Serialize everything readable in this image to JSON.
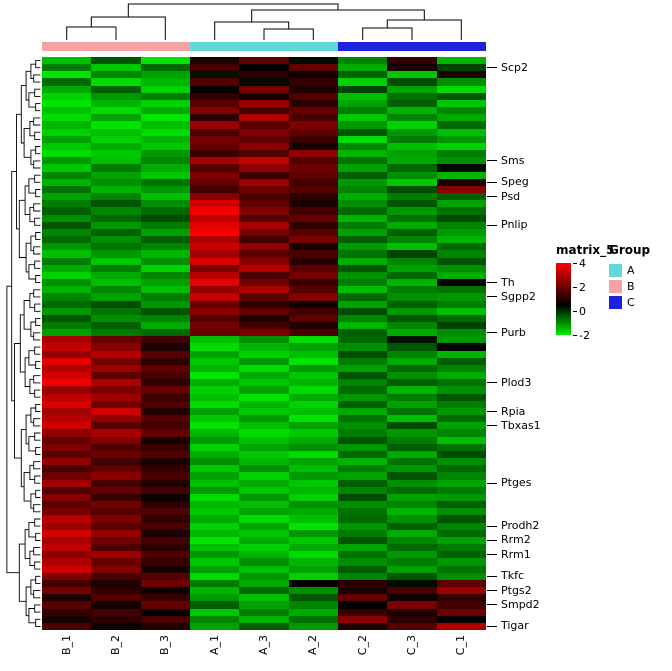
{
  "chart_data": {
    "type": "heatmap",
    "legend_title": "matrix_5",
    "colorbar_ticks": [
      4,
      2,
      0,
      -2
    ],
    "scale": {
      "min": -2,
      "mid": 0.5,
      "max": 4,
      "min_color": "#00EE00",
      "mid_color": "#000000",
      "max_color": "#FF0000"
    },
    "columns": [
      "B_1",
      "B_2",
      "B_3",
      "A_1",
      "A_3",
      "A_2",
      "C_2",
      "C_3",
      "C_1"
    ],
    "column_groups": [
      "B",
      "B",
      "B",
      "A",
      "A",
      "A",
      "C",
      "C",
      "C"
    ],
    "group_legend": {
      "title": "Group",
      "items": [
        {
          "label": "A",
          "color": "#63D8D8"
        },
        {
          "label": "B",
          "color": "#F5A2A2"
        },
        {
          "label": "C",
          "color": "#2020DF"
        }
      ]
    },
    "row_labels": [
      {
        "label": "Scp2",
        "row": 1
      },
      {
        "label": "Sms",
        "row": 14
      },
      {
        "label": "Speg",
        "row": 17
      },
      {
        "label": "Psd",
        "row": 19
      },
      {
        "label": "Pnlip",
        "row": 23
      },
      {
        "label": "Th",
        "row": 31
      },
      {
        "label": "Sgpp2",
        "row": 33
      },
      {
        "label": "Purb",
        "row": 38
      },
      {
        "label": "Plod3",
        "row": 45
      },
      {
        "label": "Rpia",
        "row": 49
      },
      {
        "label": "Tbxas1",
        "row": 51
      },
      {
        "label": "Ptges",
        "row": 59
      },
      {
        "label": "Prodh2",
        "row": 65
      },
      {
        "label": "Rrm2",
        "row": 67
      },
      {
        "label": "Rrm1",
        "row": 69
      },
      {
        "label": "Tkfc",
        "row": 72
      },
      {
        "label": "Ptgs2",
        "row": 74
      },
      {
        "label": "Smpd2",
        "row": 76
      },
      {
        "label": "Tigar",
        "row": 79
      }
    ],
    "n_rows": 80,
    "matrix": [
      [
        -1.5,
        -0.4,
        -1.9,
        0.9,
        1.8,
        0.4,
        -0.9,
        1.2,
        -1.4
      ],
      [
        -0.8,
        -1.6,
        -0.6,
        1.4,
        0.6,
        1.9,
        -1.3,
        0.8,
        -0.2
      ],
      [
        -1.9,
        -0.9,
        -1.2,
        0.3,
        1.1,
        0.7,
        -0.5,
        -1.6,
        0.9
      ],
      [
        -0.6,
        -1.8,
        -1.4,
        1.7,
        0.4,
        1.2,
        -1.7,
        -0.3,
        -1.0
      ],
      [
        -1.3,
        -0.5,
        -1.7,
        0.6,
        2.1,
        0.9,
        -0.2,
        -1.2,
        -1.8
      ],
      [
        -1.7,
        -1.1,
        -0.8,
        1.2,
        0.8,
        1.6,
        -1.5,
        -0.7,
        -0.4
      ],
      [
        -1.9,
        -1.4,
        -1.7,
        1.8,
        2.6,
        1.1,
        -1.2,
        -0.5,
        -1.6
      ],
      [
        -1.5,
        -1.8,
        -1.3,
        2.3,
        1.4,
        1.9,
        -0.8,
        -1.4,
        -0.9
      ],
      [
        -1.8,
        -1.2,
        -1.9,
        1.1,
        2.9,
        1.5,
        -1.6,
        -0.9,
        -1.3
      ],
      [
        -1.4,
        -1.9,
        -1.5,
        2.6,
        1.7,
        2.2,
        -1.1,
        -1.7,
        -0.6
      ],
      [
        -1.7,
        -1.5,
        -1.8,
        1.5,
        2.2,
        1.8,
        -0.4,
        -1.1,
        -1.5
      ],
      [
        -1.2,
        -1.7,
        -1.4,
        2.1,
        1.9,
        1.3,
        -1.8,
        -0.8,
        -1.1
      ],
      [
        -1.6,
        -1.3,
        -1.6,
        1.9,
        2.4,
        0.8,
        -0.9,
        -1.5,
        -1.7
      ],
      [
        -1.8,
        -1.6,
        -1.1,
        1.3,
        1.6,
        2.5,
        -1.4,
        -1.2,
        -0.8
      ],
      [
        -1.1,
        -1.5,
        -0.9,
        2.8,
        3.2,
        1.6,
        -0.7,
        -1.3,
        -1.0
      ],
      [
        -1.6,
        -0.8,
        -1.3,
        1.7,
        2.5,
        2.0,
        -1.2,
        -0.6,
        0.4
      ],
      [
        -0.9,
        -1.2,
        -1.6,
        2.2,
        1.3,
        1.8,
        -0.5,
        -1.0,
        -1.4
      ],
      [
        -1.4,
        -1.0,
        -0.7,
        1.9,
        2.7,
        1.4,
        -1.1,
        -1.6,
        0.8
      ],
      [
        -0.7,
        -1.4,
        -1.1,
        1.4,
        2.0,
        1.7,
        -0.9,
        -0.3,
        2.4
      ],
      [
        -1.2,
        -0.9,
        -1.5,
        2.4,
        1.5,
        1.1,
        -1.3,
        -0.8,
        -0.5
      ],
      [
        -0.8,
        -0.4,
        -1.0,
        3.4,
        1.9,
        0.9,
        -1.0,
        -0.4,
        -1.2
      ],
      [
        -0.5,
        -0.9,
        -0.6,
        3.8,
        2.3,
        1.4,
        -0.6,
        -1.1,
        -0.7
      ],
      [
        -1.0,
        -0.6,
        -0.3,
        3.1,
        1.6,
        1.9,
        -1.4,
        -0.7,
        -0.3
      ],
      [
        -0.4,
        -1.1,
        -0.8,
        3.6,
        2.8,
        1.2,
        -0.8,
        -1.3,
        -0.9
      ],
      [
        -0.9,
        -0.5,
        -1.2,
        3.9,
        2.1,
        1.7,
        -1.2,
        -0.5,
        -1.1
      ],
      [
        -0.6,
        -1.0,
        -0.5,
        2.9,
        1.4,
        2.2,
        -0.5,
        -0.9,
        -1.4
      ],
      [
        -1.1,
        -0.7,
        -0.9,
        3.3,
        2.5,
        0.8,
        -1.1,
        -1.5,
        -0.6
      ],
      [
        -1.5,
        -1.1,
        -1.4,
        2.7,
        1.8,
        1.5,
        -0.7,
        -0.2,
        -0.9
      ],
      [
        -0.8,
        -1.6,
        -1.0,
        3.5,
        2.4,
        1.1,
        -1.3,
        -0.9,
        -0.4
      ],
      [
        -1.3,
        -0.8,
        -1.7,
        2.2,
        3.0,
        1.8,
        -0.4,
        -1.2,
        -1.0
      ],
      [
        -1.7,
        -1.3,
        -0.9,
        3.0,
        1.5,
        2.1,
        -1.0,
        -0.6,
        -1.3
      ],
      [
        -1.0,
        -1.5,
        -1.2,
        3.7,
        2.0,
        1.3,
        -0.8,
        -1.4,
        0.6
      ],
      [
        -1.4,
        -0.9,
        -1.5,
        2.5,
        2.9,
        1.7,
        -1.5,
        -0.8,
        -0.7
      ],
      [
        -0.9,
        -1.2,
        -0.8,
        3.2,
        1.7,
        2.3,
        -0.6,
        -1.0,
        -1.1
      ],
      [
        -0.6,
        -0.3,
        -1.1,
        1.8,
        1.2,
        0.7,
        -1.2,
        -0.5,
        -0.8
      ],
      [
        -1.1,
        -0.7,
        -0.4,
        2.4,
        1.9,
        1.4,
        -0.3,
        -1.1,
        -1.5
      ],
      [
        -0.4,
        -1.0,
        -0.9,
        1.6,
        0.9,
        1.8,
        -0.9,
        -0.4,
        -0.6
      ],
      [
        -0.8,
        -0.5,
        -1.3,
        2.1,
        1.4,
        1.0,
        -1.4,
        -0.9,
        -0.2
      ],
      [
        -1.2,
        -0.8,
        -0.6,
        1.9,
        2.2,
        1.5,
        -0.5,
        -1.3,
        -1.0
      ],
      [
        2.8,
        1.9,
        1.4,
        -1.5,
        -1.0,
        -1.8,
        -0.6,
        0.3,
        -1.1
      ],
      [
        3.2,
        2.4,
        0.9,
        -1.8,
        -1.4,
        -1.2,
        -1.0,
        -0.4,
        0.5
      ],
      [
        2.5,
        3.0,
        1.7,
        -1.2,
        -1.7,
        -1.5,
        -0.3,
        -0.9,
        -1.4
      ],
      [
        3.6,
        2.1,
        1.2,
        -1.6,
        -1.1,
        -1.9,
        -0.8,
        -1.3,
        -0.5
      ],
      [
        2.9,
        2.6,
        1.8,
        -1.4,
        -1.8,
        -1.1,
        -1.2,
        -0.6,
        -0.9
      ],
      [
        3.4,
        1.8,
        1.5,
        -1.9,
        -1.3,
        -1.6,
        -0.4,
        -1.0,
        -1.3
      ],
      [
        3.8,
        2.9,
        1.1,
        -1.3,
        -1.6,
        -1.4,
        -0.9,
        -0.5,
        -0.7
      ],
      [
        2.6,
        2.2,
        1.9,
        -1.7,
        -1.2,
        -1.8,
        -0.6,
        -1.4,
        -1.0
      ],
      [
        3.1,
        2.7,
        1.3,
        -1.5,
        -1.9,
        -1.3,
        -1.1,
        -0.8,
        -0.4
      ],
      [
        3.5,
        2.0,
        1.6,
        -1.8,
        -1.4,
        -1.7,
        -0.5,
        -1.2,
        -0.8
      ],
      [
        2.7,
        3.3,
        1.0,
        -1.2,
        -1.6,
        -1.5,
        -1.3,
        -0.7,
        -1.1
      ],
      [
        3.0,
        2.5,
        1.7,
        -1.6,
        -1.1,
        -1.9,
        -0.7,
        -1.5,
        -0.6
      ],
      [
        3.3,
        1.7,
        1.4,
        -1.9,
        -1.5,
        -1.2,
        -1.0,
        -0.3,
        -1.2
      ],
      [
        2.4,
        2.8,
        1.9,
        -1.4,
        -1.8,
        -1.6,
        -0.8,
        -1.1,
        -0.9
      ],
      [
        1.9,
        2.3,
        0.8,
        -1.1,
        -1.5,
        -1.3,
        -0.4,
        -0.8,
        -1.5
      ],
      [
        2.2,
        1.6,
        1.3,
        -1.7,
        -1.2,
        -1.0,
        -1.1,
        -0.5,
        -0.7
      ],
      [
        1.7,
        2.0,
        1.6,
        -1.3,
        -1.6,
        -1.8,
        -0.6,
        -1.3,
        -0.3
      ],
      [
        2.5,
        1.4,
        0.9,
        -1.0,
        -1.4,
        -1.2,
        -1.4,
        -0.7,
        -1.0
      ],
      [
        1.5,
        1.8,
        1.2,
        -1.6,
        -1.0,
        -1.5,
        -0.8,
        -1.1,
        -0.6
      ],
      [
        2.0,
        2.4,
        1.5,
        -1.2,
        -1.7,
        -1.1,
        -1.2,
        -0.4,
        -0.9
      ],
      [
        2.7,
        1.5,
        1.0,
        -1.5,
        -1.3,
        -1.6,
        -0.5,
        -1.0,
        -1.2
      ],
      [
        1.6,
        1.9,
        1.4,
        -1.1,
        -1.6,
        -1.4,
        -0.9,
        -0.6,
        -0.8
      ],
      [
        2.3,
        1.3,
        0.7,
        -1.8,
        -1.1,
        -1.7,
        -0.3,
        -1.2,
        -1.1
      ],
      [
        1.8,
        2.1,
        1.1,
        -1.4,
        -1.5,
        -1.0,
        -1.0,
        -0.9,
        -0.5
      ],
      [
        2.1,
        1.7,
        1.6,
        -1.6,
        -1.2,
        -1.3,
        -0.7,
        -1.4,
        -1.0
      ],
      [
        3.0,
        2.2,
        1.2,
        -1.3,
        -1.8,
        -1.5,
        -0.6,
        -1.0,
        -0.4
      ],
      [
        2.6,
        1.8,
        1.5,
        -1.7,
        -1.2,
        -1.9,
        -1.1,
        -0.5,
        -0.9
      ],
      [
        3.4,
        2.5,
        0.9,
        -1.4,
        -1.6,
        -1.1,
        -0.8,
        -1.3,
        -0.6
      ],
      [
        2.8,
        2.0,
        1.4,
        -1.9,
        -1.3,
        -1.6,
        -0.4,
        -0.9,
        -1.2
      ],
      [
        3.1,
        1.6,
        1.1,
        -1.5,
        -1.7,
        -1.3,
        -1.2,
        -0.6,
        -0.8
      ],
      [
        2.4,
        2.7,
        1.6,
        -1.1,
        -1.4,
        -1.8,
        -0.7,
        -1.1,
        -0.5
      ],
      [
        2.9,
        1.9,
        1.3,
        -1.6,
        -1.0,
        -1.4,
        -1.0,
        -0.8,
        -1.1
      ],
      [
        3.3,
        2.3,
        0.8,
        -1.2,
        -1.5,
        -1.2,
        -0.5,
        -1.2,
        -0.7
      ],
      [
        2.2,
        1.5,
        1.7,
        -1.8,
        -1.1,
        -1.7,
        -0.9,
        -0.4,
        -1.0
      ],
      [
        1.4,
        0.9,
        2.0,
        -0.8,
        -1.3,
        0.6,
        1.1,
        0.4,
        1.8
      ],
      [
        2.1,
        1.2,
        0.7,
        -1.4,
        -0.6,
        -1.0,
        0.8,
        1.5,
        2.6
      ],
      [
        0.9,
        1.6,
        1.3,
        -1.1,
        -1.5,
        -0.4,
        1.9,
        0.7,
        1.2
      ],
      [
        1.7,
        0.8,
        1.9,
        -0.5,
        -1.2,
        -0.9,
        0.5,
        2.2,
        1.4
      ],
      [
        1.2,
        1.4,
        0.6,
        -1.6,
        -0.8,
        -1.3,
        1.3,
        0.9,
        2.0
      ],
      [
        0.8,
        1.1,
        1.5,
        -0.9,
        -1.4,
        -0.7,
        2.4,
        1.1,
        0.6
      ],
      [
        1.5,
        0.7,
        1.0,
        -1.2,
        -0.5,
        -1.1,
        0.9,
        1.7,
        2.9
      ]
    ]
  }
}
